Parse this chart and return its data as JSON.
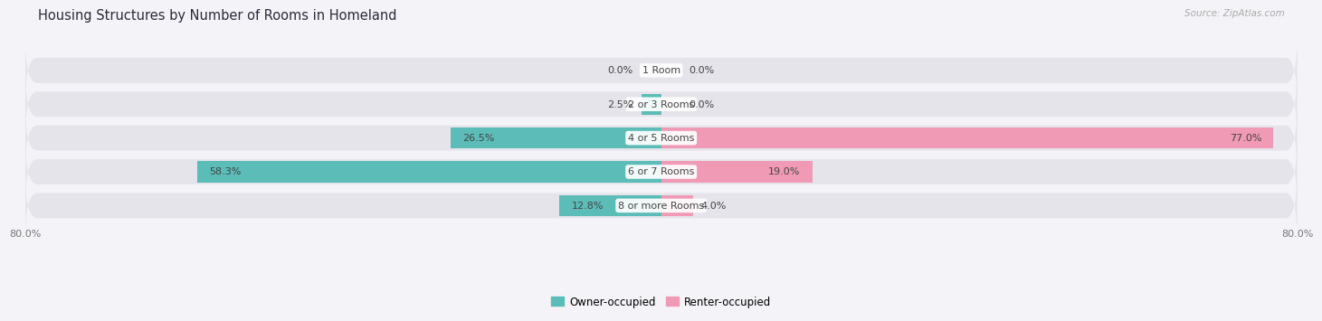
{
  "title": "Housing Structures by Number of Rooms in Homeland",
  "source": "Source: ZipAtlas.com",
  "categories": [
    "1 Room",
    "2 or 3 Rooms",
    "4 or 5 Rooms",
    "6 or 7 Rooms",
    "8 or more Rooms"
  ],
  "owner_values": [
    0.0,
    2.5,
    26.5,
    58.3,
    12.8
  ],
  "renter_values": [
    0.0,
    0.0,
    77.0,
    19.0,
    4.0
  ],
  "owner_color": "#5bbcb8",
  "renter_color": "#f09ab5",
  "bar_bg_color": "#e4e4ea",
  "xlim": [
    -80,
    80
  ],
  "xtick_labels_left": "80.0%",
  "xtick_labels_right": "80.0%",
  "bar_height": 0.62,
  "bg_bar_height": 0.75,
  "label_fontsize": 8.0,
  "title_fontsize": 10.5,
  "source_fontsize": 7.5,
  "legend_fontsize": 8.5,
  "background_color": "#f4f4f8",
  "text_color": "#444444",
  "source_color": "#aaaaaa",
  "tick_color": "#777777"
}
